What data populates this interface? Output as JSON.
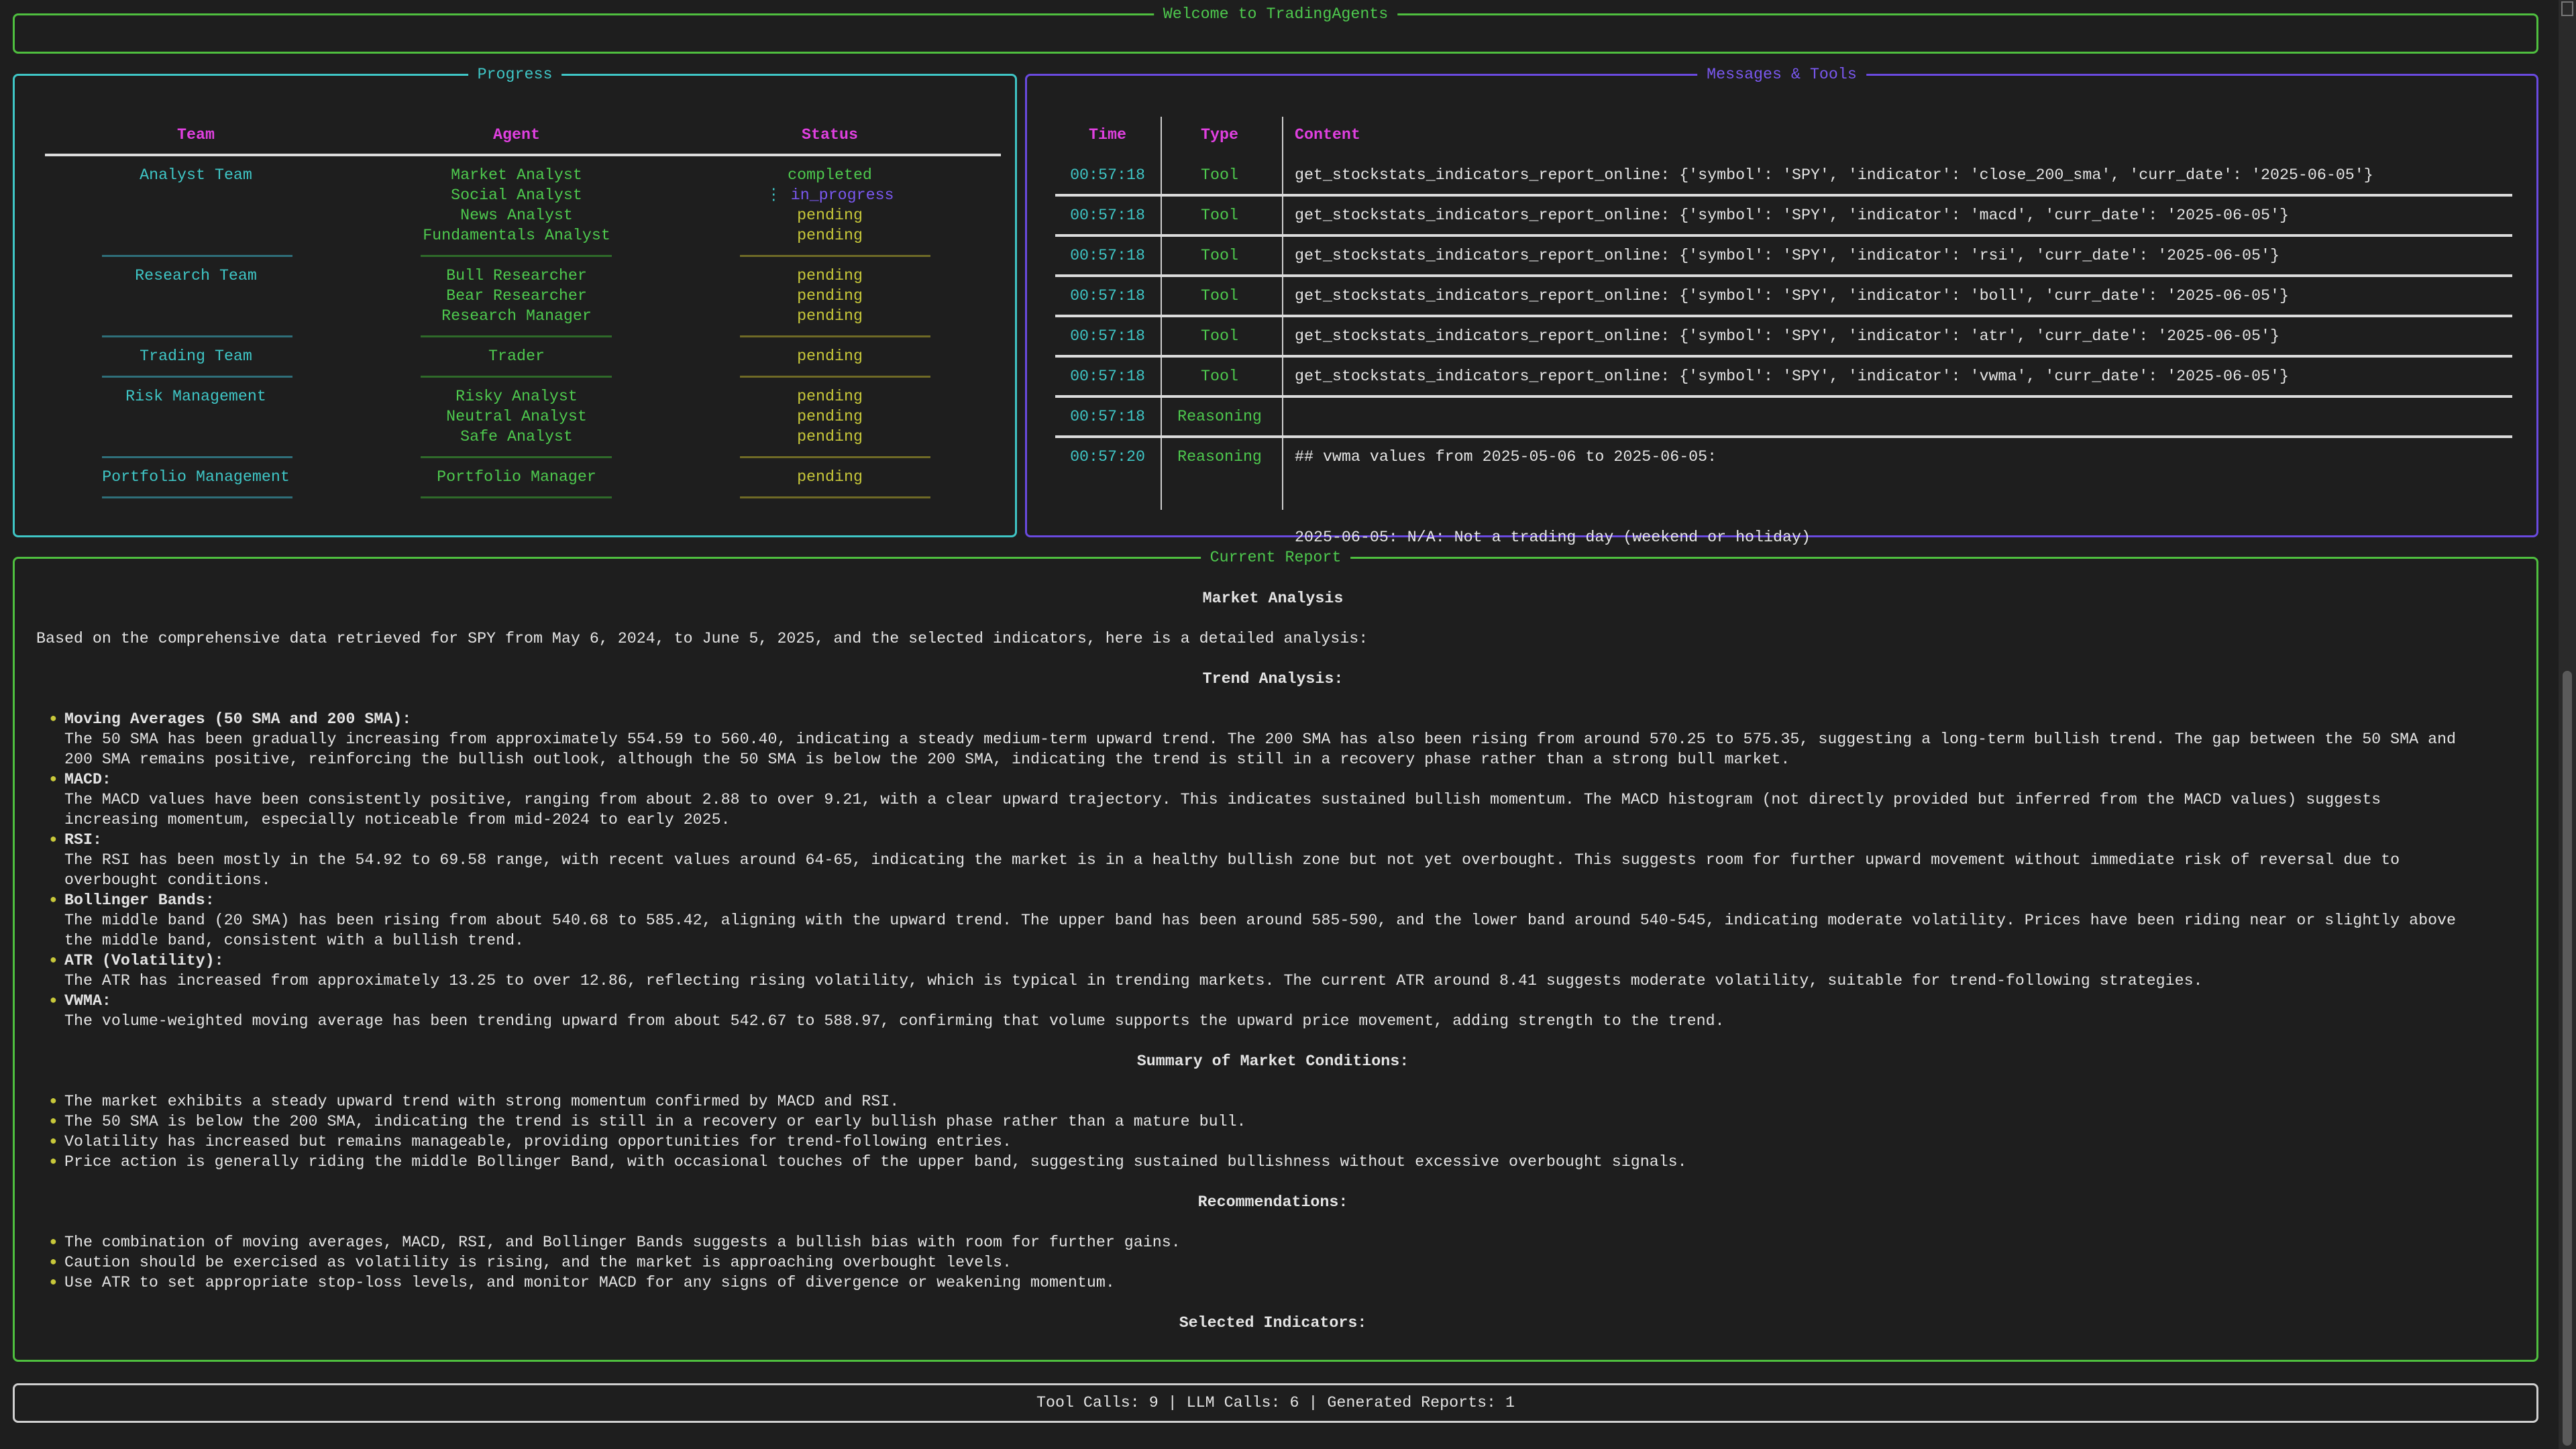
{
  "welcome": {
    "title": "Welcome to TradingAgents"
  },
  "colors": {
    "border_green": "#4fbf3f",
    "border_cyan": "#3fc6c6",
    "border_purple": "#6a4ae0",
    "header_magenta": "#e040e0",
    "pending_yellow": "#c8c83a",
    "in_progress_purple": "#7a58f0"
  },
  "progress": {
    "title": "Progress",
    "headers": {
      "team": "Team",
      "agent": "Agent",
      "status": "Status"
    },
    "teams": [
      {
        "team": "Analyst Team",
        "agents": [
          {
            "name": "Market Analyst",
            "status": "completed"
          },
          {
            "name": "Social Analyst",
            "status": "in_progress",
            "spinner": "⋮"
          },
          {
            "name": "News Analyst",
            "status": "pending"
          },
          {
            "name": "Fundamentals Analyst",
            "status": "pending"
          }
        ]
      },
      {
        "team": "Research Team",
        "agents": [
          {
            "name": "Bull Researcher",
            "status": "pending"
          },
          {
            "name": "Bear Researcher",
            "status": "pending"
          },
          {
            "name": "Research Manager",
            "status": "pending"
          }
        ]
      },
      {
        "team": "Trading Team",
        "agents": [
          {
            "name": "Trader",
            "status": "pending"
          }
        ]
      },
      {
        "team": "Risk Management",
        "agents": [
          {
            "name": "Risky Analyst",
            "status": "pending"
          },
          {
            "name": "Neutral Analyst",
            "status": "pending"
          },
          {
            "name": "Safe Analyst",
            "status": "pending"
          }
        ]
      },
      {
        "team": "Portfolio Management",
        "agents": [
          {
            "name": "Portfolio Manager",
            "status": "pending"
          }
        ]
      }
    ]
  },
  "messages": {
    "title": "Messages & Tools",
    "headers": {
      "time": "Time",
      "type": "Type",
      "content": "Content"
    },
    "rows": [
      {
        "time": "00:57:18",
        "type": "Tool",
        "content": [
          "get_stockstats_indicators_report_online: {'symbol': 'SPY', 'indicator': 'close_200_sma', 'curr_date': '2025-06-05'}"
        ]
      },
      {
        "time": "00:57:18",
        "type": "Tool",
        "content": [
          "get_stockstats_indicators_report_online: {'symbol': 'SPY', 'indicator': 'macd', 'curr_date': '2025-06-05'}"
        ]
      },
      {
        "time": "00:57:18",
        "type": "Tool",
        "content": [
          "get_stockstats_indicators_report_online: {'symbol': 'SPY', 'indicator': 'rsi', 'curr_date': '2025-06-05'}"
        ]
      },
      {
        "time": "00:57:18",
        "type": "Tool",
        "content": [
          "get_stockstats_indicators_report_online: {'symbol': 'SPY', 'indicator': 'boll', 'curr_date': '2025-06-05'}"
        ]
      },
      {
        "time": "00:57:18",
        "type": "Tool",
        "content": [
          "get_stockstats_indicators_report_online: {'symbol': 'SPY', 'indicator': 'atr', 'curr_date': '2025-06-05'}"
        ]
      },
      {
        "time": "00:57:18",
        "type": "Tool",
        "content": [
          "get_stockstats_indicators_report_online: {'symbol': 'SPY', 'indicator': 'vwma', 'curr_date': '2025-06-05'}"
        ]
      },
      {
        "time": "00:57:18",
        "type": "Reasoning",
        "content": [
          ""
        ]
      },
      {
        "time": "00:57:20",
        "type": "Reasoning",
        "content": [
          "## vwma values from 2025-05-06 to 2025-06-05:",
          "",
          "2025-06-05: N/A: Not a trading day (weekend or holiday)"
        ]
      }
    ]
  },
  "report": {
    "title": "Current Report",
    "heading": "Market Analysis",
    "intro": "Based on the comprehensive data retrieved for SPY from May 6, 2024, to June 5, 2025, and the selected indicators, here is a detailed analysis:",
    "trend_heading": "Trend Analysis:",
    "trend_items": [
      {
        "title": "Moving Averages (50 SMA and 200 SMA):",
        "text": "The 50 SMA has been gradually increasing from approximately 554.59 to 560.40, indicating a steady medium-term upward trend. The 200 SMA has also been rising from around 570.25 to 575.35, suggesting a long-term bullish trend. The gap between the 50 SMA and 200 SMA remains positive, reinforcing the bullish outlook, although the 50 SMA is below the 200 SMA, indicating the trend is still in a recovery phase rather than a strong bull market."
      },
      {
        "title": "MACD:",
        "text": "The MACD values have been consistently positive, ranging from about 2.88 to over 9.21, with a clear upward trajectory. This indicates sustained bullish momentum. The MACD histogram (not directly provided but inferred from the MACD values) suggests increasing momentum, especially noticeable from mid-2024 to early 2025."
      },
      {
        "title": "RSI:",
        "text": "The RSI has been mostly in the 54.92 to 69.58 range, with recent values around 64-65, indicating the market is in a healthy bullish zone but not yet overbought. This suggests room for further upward movement without immediate risk of reversal due to overbought conditions."
      },
      {
        "title": "Bollinger Bands:",
        "text": "The middle band (20 SMA) has been rising from about 540.68 to 585.42, aligning with the upward trend. The upper band has been around 585-590, and the lower band around 540-545, indicating moderate volatility. Prices have been riding near or slightly above the middle band, consistent with a bullish trend."
      },
      {
        "title": "ATR (Volatility):",
        "text": "The ATR has increased from approximately 13.25 to over 12.86, reflecting rising volatility, which is typical in trending markets. The current ATR around 8.41 suggests moderate volatility, suitable for trend-following strategies."
      },
      {
        "title": "VWMA:",
        "text": "The volume-weighted moving average has been trending upward from about 542.67 to 588.97, confirming that volume supports the upward price movement, adding strength to the trend."
      }
    ],
    "summary_heading": "Summary of Market Conditions:",
    "summary_items": [
      "The market exhibits a steady upward trend with strong momentum confirmed by MACD and RSI.",
      "The 50 SMA is below the 200 SMA, indicating the trend is still in a recovery or early bullish phase rather than a mature bull.",
      "Volatility has increased but remains manageable, providing opportunities for trend-following entries.",
      "Price action is generally riding the middle Bollinger Band, with occasional touches of the upper band, suggesting sustained bullishness without excessive overbought signals."
    ],
    "recommendations_heading": "Recommendations:",
    "recommendation_items": [
      "The combination of moving averages, MACD, RSI, and Bollinger Bands suggests a bullish bias with room for further gains.",
      "Caution should be exercised as volatility is rising, and the market is approaching overbought levels.",
      "Use ATR to set appropriate stop-loss levels, and monitor MACD for any signs of divergence or weakening momentum."
    ],
    "indicators_heading": "Selected Indicators:"
  },
  "footer": {
    "stats": "Tool Calls: 9 | LLM Calls: 6 | Generated Reports: 1"
  }
}
